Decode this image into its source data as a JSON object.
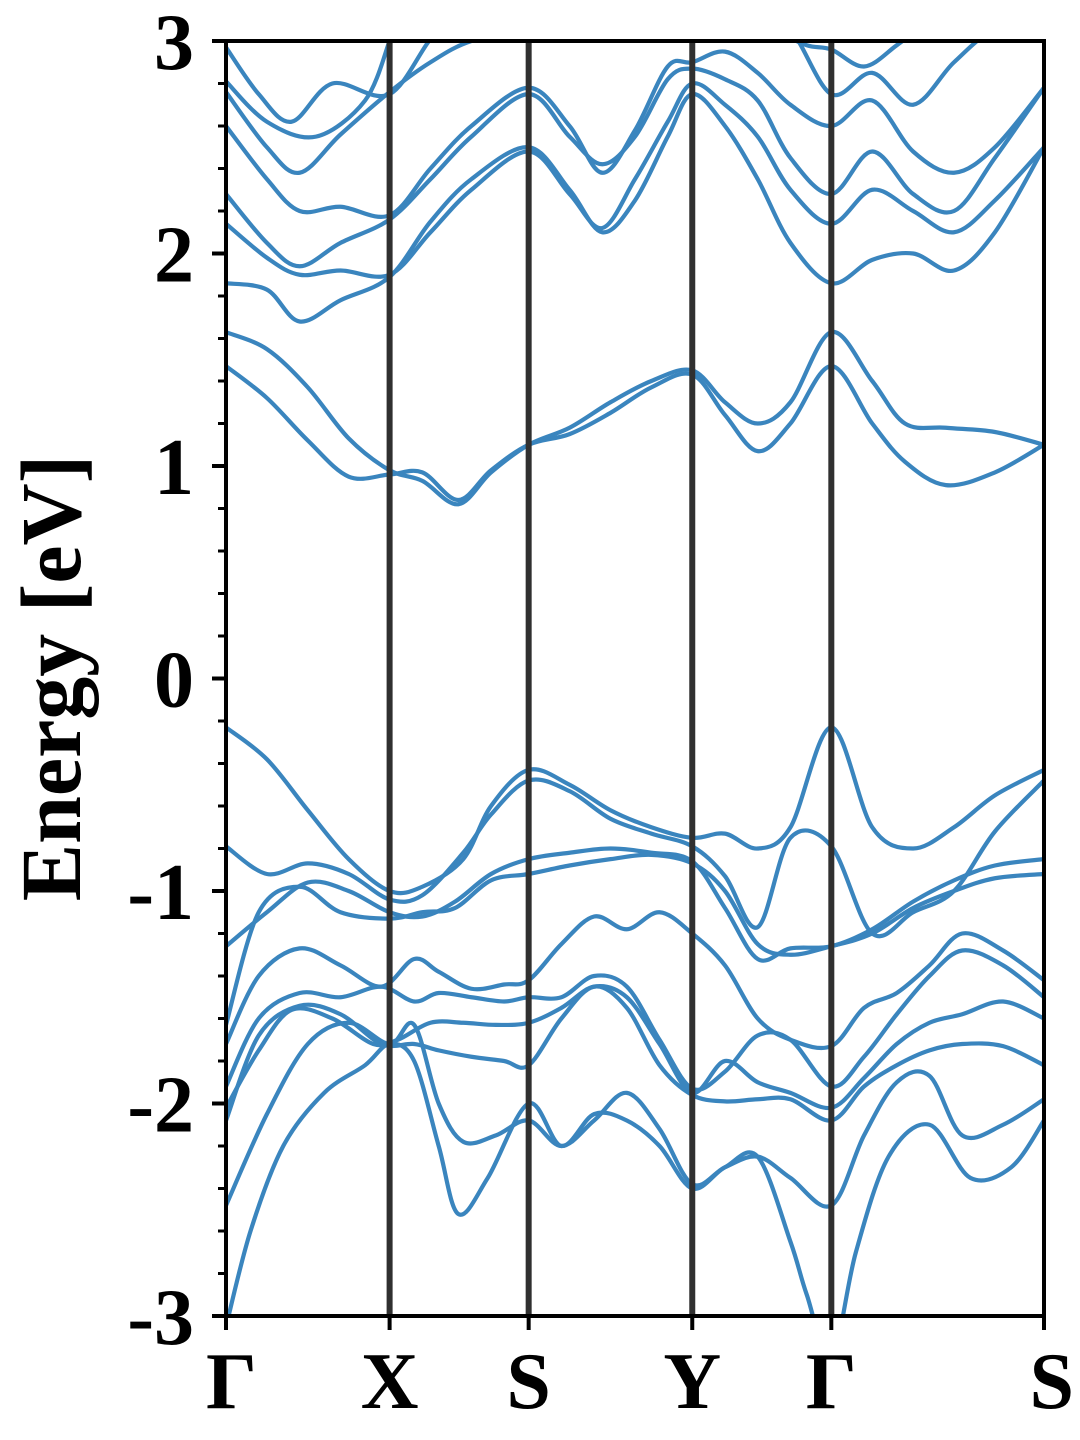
{
  "chart_data": {
    "type": "line",
    "title": "",
    "xlabel": "",
    "ylabel": "Energy [eV]",
    "ylim": [
      -3,
      3
    ],
    "y_ticks": [
      {
        "value": 3,
        "label": "3"
      },
      {
        "value": 2,
        "label": "2"
      },
      {
        "value": 1,
        "label": "1"
      },
      {
        "value": 0,
        "label": "0"
      },
      {
        "value": -1,
        "label": "-1"
      },
      {
        "value": -2,
        "label": "-2"
      },
      {
        "value": -3,
        "label": "-3"
      }
    ],
    "y_minor_step": 0.2,
    "xlim": [
      0,
      5
    ],
    "x_ticks": [
      {
        "value": 0,
        "label": "Γ"
      },
      {
        "value": 1,
        "label": "X"
      },
      {
        "value": 1.85,
        "label": "S"
      },
      {
        "value": 2.85,
        "label": "Y"
      },
      {
        "value": 3.7,
        "label": "Γ"
      },
      {
        "value": 5,
        "label": "S"
      }
    ],
    "vlines_at": [
      1,
      1.85,
      2.85,
      3.7
    ],
    "grid": false,
    "legend": "none",
    "colors": {
      "band": "#3a85be",
      "vline": "#303030",
      "axis": "#000000"
    },
    "series": [
      {
        "x": [
          0,
          0.25,
          0.5,
          0.75,
          1,
          1.2,
          1.42,
          1.62,
          1.85,
          2.1,
          2.35,
          2.6,
          2.85,
          3.05,
          3.25,
          3.45,
          3.7,
          3.95,
          4.15,
          4.4,
          4.7,
          5
        ],
        "values": [
          1.63,
          1.55,
          1.37,
          1.13,
          0.98,
          0.93,
          0.82,
          0.97,
          1.1,
          1.18,
          1.3,
          1.4,
          1.45,
          1.3,
          1.2,
          1.3,
          1.63,
          1.4,
          1.2,
          1.18,
          1.16,
          1.1
        ]
      },
      {
        "x": [
          0,
          0.25,
          0.5,
          0.75,
          1,
          1.2,
          1.42,
          1.62,
          1.85,
          2.1,
          2.35,
          2.6,
          2.85,
          3.05,
          3.25,
          3.45,
          3.7,
          3.95,
          4.15,
          4.4,
          4.7,
          5
        ],
        "values": [
          1.47,
          1.32,
          1.12,
          0.95,
          0.96,
          0.97,
          0.84,
          0.98,
          1.1,
          1.15,
          1.25,
          1.37,
          1.43,
          1.24,
          1.07,
          1.2,
          1.47,
          1.2,
          1.02,
          0.91,
          0.97,
          1.1
        ]
      },
      {
        "x": [
          0,
          0.25,
          0.45,
          0.7,
          1,
          1.25,
          1.5,
          1.85,
          2.1,
          2.3,
          2.5,
          2.7,
          2.85,
          3.05,
          3.25,
          3.45,
          3.7,
          3.95,
          4.2,
          4.45,
          4.7,
          5
        ],
        "values": [
          1.86,
          1.83,
          1.68,
          1.78,
          1.89,
          2.15,
          2.35,
          2.5,
          2.3,
          2.1,
          2.25,
          2.55,
          2.75,
          2.6,
          2.35,
          2.05,
          1.86,
          1.97,
          2.0,
          1.92,
          2.1,
          2.5
        ]
      },
      {
        "x": [
          0,
          0.25,
          0.45,
          0.7,
          1,
          1.25,
          1.5,
          1.85,
          2.1,
          2.3,
          2.5,
          2.7,
          2.85,
          3.05,
          3.25,
          3.45,
          3.7,
          3.95,
          4.2,
          4.45,
          4.7,
          5
        ],
        "values": [
          2.14,
          1.98,
          1.9,
          1.92,
          1.9,
          2.1,
          2.3,
          2.48,
          2.28,
          2.12,
          2.35,
          2.62,
          2.8,
          2.7,
          2.55,
          2.3,
          2.14,
          2.3,
          2.2,
          2.1,
          2.25,
          2.5
        ]
      },
      {
        "x": [
          0,
          0.25,
          0.45,
          0.7,
          1,
          1.25,
          1.5,
          1.85,
          2.1,
          2.3,
          2.5,
          2.7,
          2.85,
          3.05,
          3.25,
          3.45,
          3.7,
          3.95,
          4.2,
          4.45,
          4.7,
          5
        ],
        "values": [
          2.28,
          2.05,
          1.94,
          2.05,
          2.16,
          2.35,
          2.55,
          2.75,
          2.55,
          2.42,
          2.55,
          2.82,
          2.87,
          2.82,
          2.72,
          2.45,
          2.28,
          2.48,
          2.28,
          2.2,
          2.45,
          2.78
        ]
      },
      {
        "x": [
          0,
          0.25,
          0.45,
          0.7,
          1,
          1.25,
          1.5,
          1.85,
          2.1,
          2.3,
          2.5,
          2.7,
          2.85,
          3.05,
          3.25,
          3.45,
          3.7,
          3.95,
          4.2,
          4.45,
          4.7,
          5
        ],
        "values": [
          2.6,
          2.35,
          2.2,
          2.22,
          2.18,
          2.4,
          2.6,
          2.78,
          2.6,
          2.38,
          2.58,
          2.88,
          2.9,
          2.95,
          2.85,
          2.7,
          2.6,
          2.72,
          2.48,
          2.38,
          2.5,
          2.78
        ]
      },
      {
        "x": [
          0,
          0.25,
          0.45,
          0.7,
          1,
          1.25,
          1.5,
          1.85,
          2.1,
          2.3,
          2.5,
          2.7,
          2.85,
          3.05,
          3.25,
          3.45,
          3.7,
          3.95,
          4.2,
          4.45,
          4.7,
          5
        ],
        "values": [
          2.76,
          2.5,
          2.38,
          2.56,
          2.76,
          2.9,
          3.0,
          3.05,
          3.05,
          3.05,
          3.05,
          3.05,
          3.05,
          3.05,
          3.05,
          3.05,
          2.75,
          2.85,
          2.7,
          2.9,
          3.05,
          3.05
        ]
      },
      {
        "x": [
          0,
          0.2,
          0.4,
          0.65,
          1,
          1.3,
          1.6,
          1.9
        ],
        "values": [
          2.97,
          2.75,
          2.62,
          2.8,
          2.75,
          3.05,
          3.1,
          3.1
        ]
      },
      {
        "x": [
          0,
          0.25,
          0.55,
          0.85,
          1
        ],
        "values": [
          2.81,
          2.62,
          2.55,
          2.72,
          3.0
        ]
      },
      {
        "x": [
          3.35,
          3.55,
          3.7,
          3.9,
          4.1,
          4.3
        ],
        "values": [
          3.05,
          2.98,
          2.96,
          2.88,
          2.98,
          3.1
        ]
      },
      {
        "x": [
          0,
          0.25,
          0.5,
          0.75,
          1,
          1.2,
          1.45,
          1.62,
          1.85,
          2.1,
          2.35,
          2.6,
          2.85,
          3.05,
          3.25,
          3.45,
          3.7,
          3.95,
          4.2,
          4.45,
          4.7,
          5
        ],
        "values": [
          -0.23,
          -0.38,
          -0.62,
          -0.85,
          -1.0,
          -0.98,
          -0.85,
          -0.6,
          -0.43,
          -0.5,
          -0.62,
          -0.7,
          -0.75,
          -0.73,
          -0.8,
          -0.7,
          -0.23,
          -0.7,
          -0.8,
          -0.7,
          -0.55,
          -0.43
        ]
      },
      {
        "x": [
          0,
          0.25,
          0.5,
          0.75,
          1,
          1.2,
          1.45,
          1.62,
          1.85,
          2.1,
          2.35,
          2.6,
          2.85,
          3.05,
          3.25,
          3.45,
          3.7,
          3.95,
          4.2,
          4.45,
          4.7,
          5
        ],
        "values": [
          -0.79,
          -0.92,
          -0.87,
          -0.92,
          -1.04,
          -1.02,
          -0.82,
          -0.64,
          -0.48,
          -0.53,
          -0.66,
          -0.73,
          -0.79,
          -0.93,
          -1.17,
          -0.75,
          -0.79,
          -1.2,
          -1.1,
          -1.0,
          -0.72,
          -0.48
        ]
      },
      {
        "x": [
          0,
          0.25,
          0.5,
          0.75,
          1,
          1.2,
          1.4,
          1.62,
          1.85,
          2.1,
          2.35,
          2.6,
          2.85,
          3.05,
          3.25,
          3.45,
          3.7,
          3.95,
          4.2,
          4.45,
          4.7,
          5
        ],
        "values": [
          -1.26,
          -1.1,
          -0.96,
          -1.0,
          -1.1,
          -1.12,
          -1.05,
          -0.92,
          -0.85,
          -0.82,
          -0.8,
          -0.82,
          -0.86,
          -1.08,
          -1.32,
          -1.27,
          -1.26,
          -1.18,
          -1.05,
          -0.95,
          -0.88,
          -0.85
        ]
      },
      {
        "x": [
          0,
          0.2,
          0.45,
          0.7,
          1,
          1.2,
          1.4,
          1.62,
          1.85,
          2.1,
          2.35,
          2.6,
          2.85,
          3.05,
          3.25,
          3.45,
          3.7,
          3.95,
          4.2,
          4.45,
          4.7,
          5
        ],
        "values": [
          -1.63,
          -1.1,
          -0.98,
          -1.1,
          -1.13,
          -1.1,
          -1.08,
          -0.95,
          -0.92,
          -0.88,
          -0.85,
          -0.83,
          -0.87,
          -1.0,
          -1.25,
          -1.3,
          -1.26,
          -1.2,
          -1.08,
          -1.0,
          -0.94,
          -0.92
        ]
      },
      {
        "x": [
          0,
          0.2,
          0.45,
          0.7,
          0.95,
          1.15,
          1.3,
          1.5,
          1.7,
          1.85,
          2.05,
          2.25,
          2.45,
          2.65,
          2.85,
          3.05,
          3.25,
          3.45,
          3.7,
          3.9,
          4.1,
          4.3,
          4.5,
          4.75,
          5
        ],
        "values": [
          -1.72,
          -1.4,
          -1.27,
          -1.35,
          -1.45,
          -1.32,
          -1.38,
          -1.46,
          -1.44,
          -1.42,
          -1.25,
          -1.12,
          -1.18,
          -1.1,
          -1.2,
          -1.35,
          -1.6,
          -1.7,
          -1.73,
          -1.55,
          -1.48,
          -1.35,
          -1.2,
          -1.28,
          -1.42
        ]
      },
      {
        "x": [
          0,
          0.2,
          0.45,
          0.7,
          0.95,
          1.15,
          1.3,
          1.5,
          1.7,
          1.85,
          2.05,
          2.25,
          2.45,
          2.65,
          2.85,
          3.05,
          3.25,
          3.45,
          3.7,
          3.9,
          4.1,
          4.3,
          4.5,
          4.75,
          5
        ],
        "values": [
          -1.92,
          -1.6,
          -1.48,
          -1.5,
          -1.45,
          -1.52,
          -1.48,
          -1.5,
          -1.52,
          -1.5,
          -1.5,
          -1.4,
          -1.45,
          -1.7,
          -1.93,
          -1.85,
          -1.68,
          -1.7,
          -1.92,
          -1.78,
          -1.58,
          -1.4,
          -1.28,
          -1.35,
          -1.5
        ]
      },
      {
        "x": [
          0,
          0.2,
          0.4,
          0.65,
          0.9,
          1.05,
          1.25,
          1.45,
          1.65,
          1.85,
          2.05,
          2.25,
          2.45,
          2.65,
          2.85,
          3.05,
          3.25,
          3.45,
          3.7,
          3.9,
          4.1,
          4.3,
          4.5,
          4.75,
          5
        ],
        "values": [
          -2.02,
          -1.75,
          -1.56,
          -1.6,
          -1.72,
          -1.7,
          -1.62,
          -1.62,
          -1.63,
          -1.62,
          -1.55,
          -1.45,
          -1.5,
          -1.72,
          -1.95,
          -1.8,
          -1.9,
          -1.95,
          -2.02,
          -1.88,
          -1.72,
          -1.62,
          -1.58,
          -1.52,
          -1.6
        ]
      },
      {
        "x": [
          0,
          0.2,
          0.45,
          0.7,
          0.95,
          1.15,
          1.3,
          1.5,
          1.7,
          1.85,
          2.05,
          2.25,
          2.45,
          2.65,
          2.85,
          3.05,
          3.25,
          3.45,
          3.7,
          3.9,
          4.1,
          4.3,
          4.5,
          4.75,
          5
        ],
        "values": [
          -2.08,
          -1.68,
          -1.54,
          -1.58,
          -1.72,
          -1.72,
          -1.75,
          -1.78,
          -1.8,
          -1.82,
          -1.6,
          -1.45,
          -1.55,
          -1.82,
          -1.96,
          -1.99,
          -1.98,
          -1.98,
          -2.08,
          -1.92,
          -1.82,
          -1.75,
          -1.72,
          -1.73,
          -1.82
        ]
      },
      {
        "x": [
          0,
          0.25,
          0.5,
          0.75,
          1,
          1.15,
          1.3,
          1.45,
          1.65,
          1.85,
          2.05,
          2.25,
          2.45,
          2.65,
          2.85,
          3.05,
          3.25,
          3.45,
          3.7,
          3.9,
          4.1,
          4.3,
          4.5,
          4.75,
          5
        ],
        "values": [
          -2.48,
          -2.05,
          -1.72,
          -1.62,
          -1.72,
          -1.63,
          -2.0,
          -2.18,
          -2.15,
          -2.08,
          -2.2,
          -2.08,
          -1.95,
          -2.12,
          -2.38,
          -2.3,
          -2.25,
          -2.35,
          -2.48,
          -2.15,
          -1.9,
          -1.87,
          -2.15,
          -2.1,
          -1.98
        ]
      },
      {
        "x": [
          0,
          0.15,
          0.35,
          0.6,
          0.85,
          1,
          1.15,
          1.3,
          1.42,
          1.6,
          1.85,
          2.05,
          2.25,
          2.45,
          2.65,
          2.85,
          3.05,
          3.25,
          3.45,
          3.55,
          3.7,
          3.85,
          4.05,
          4.3,
          4.55,
          4.8,
          5
        ],
        "values": [
          -3.05,
          -2.6,
          -2.2,
          -1.95,
          -1.82,
          -1.72,
          -1.8,
          -2.2,
          -2.52,
          -2.35,
          -2.0,
          -2.2,
          -2.05,
          -2.08,
          -2.2,
          -2.4,
          -2.3,
          -2.25,
          -2.65,
          -2.9,
          -3.2,
          -2.7,
          -2.25,
          -2.1,
          -2.35,
          -2.3,
          -2.08
        ]
      }
    ]
  }
}
